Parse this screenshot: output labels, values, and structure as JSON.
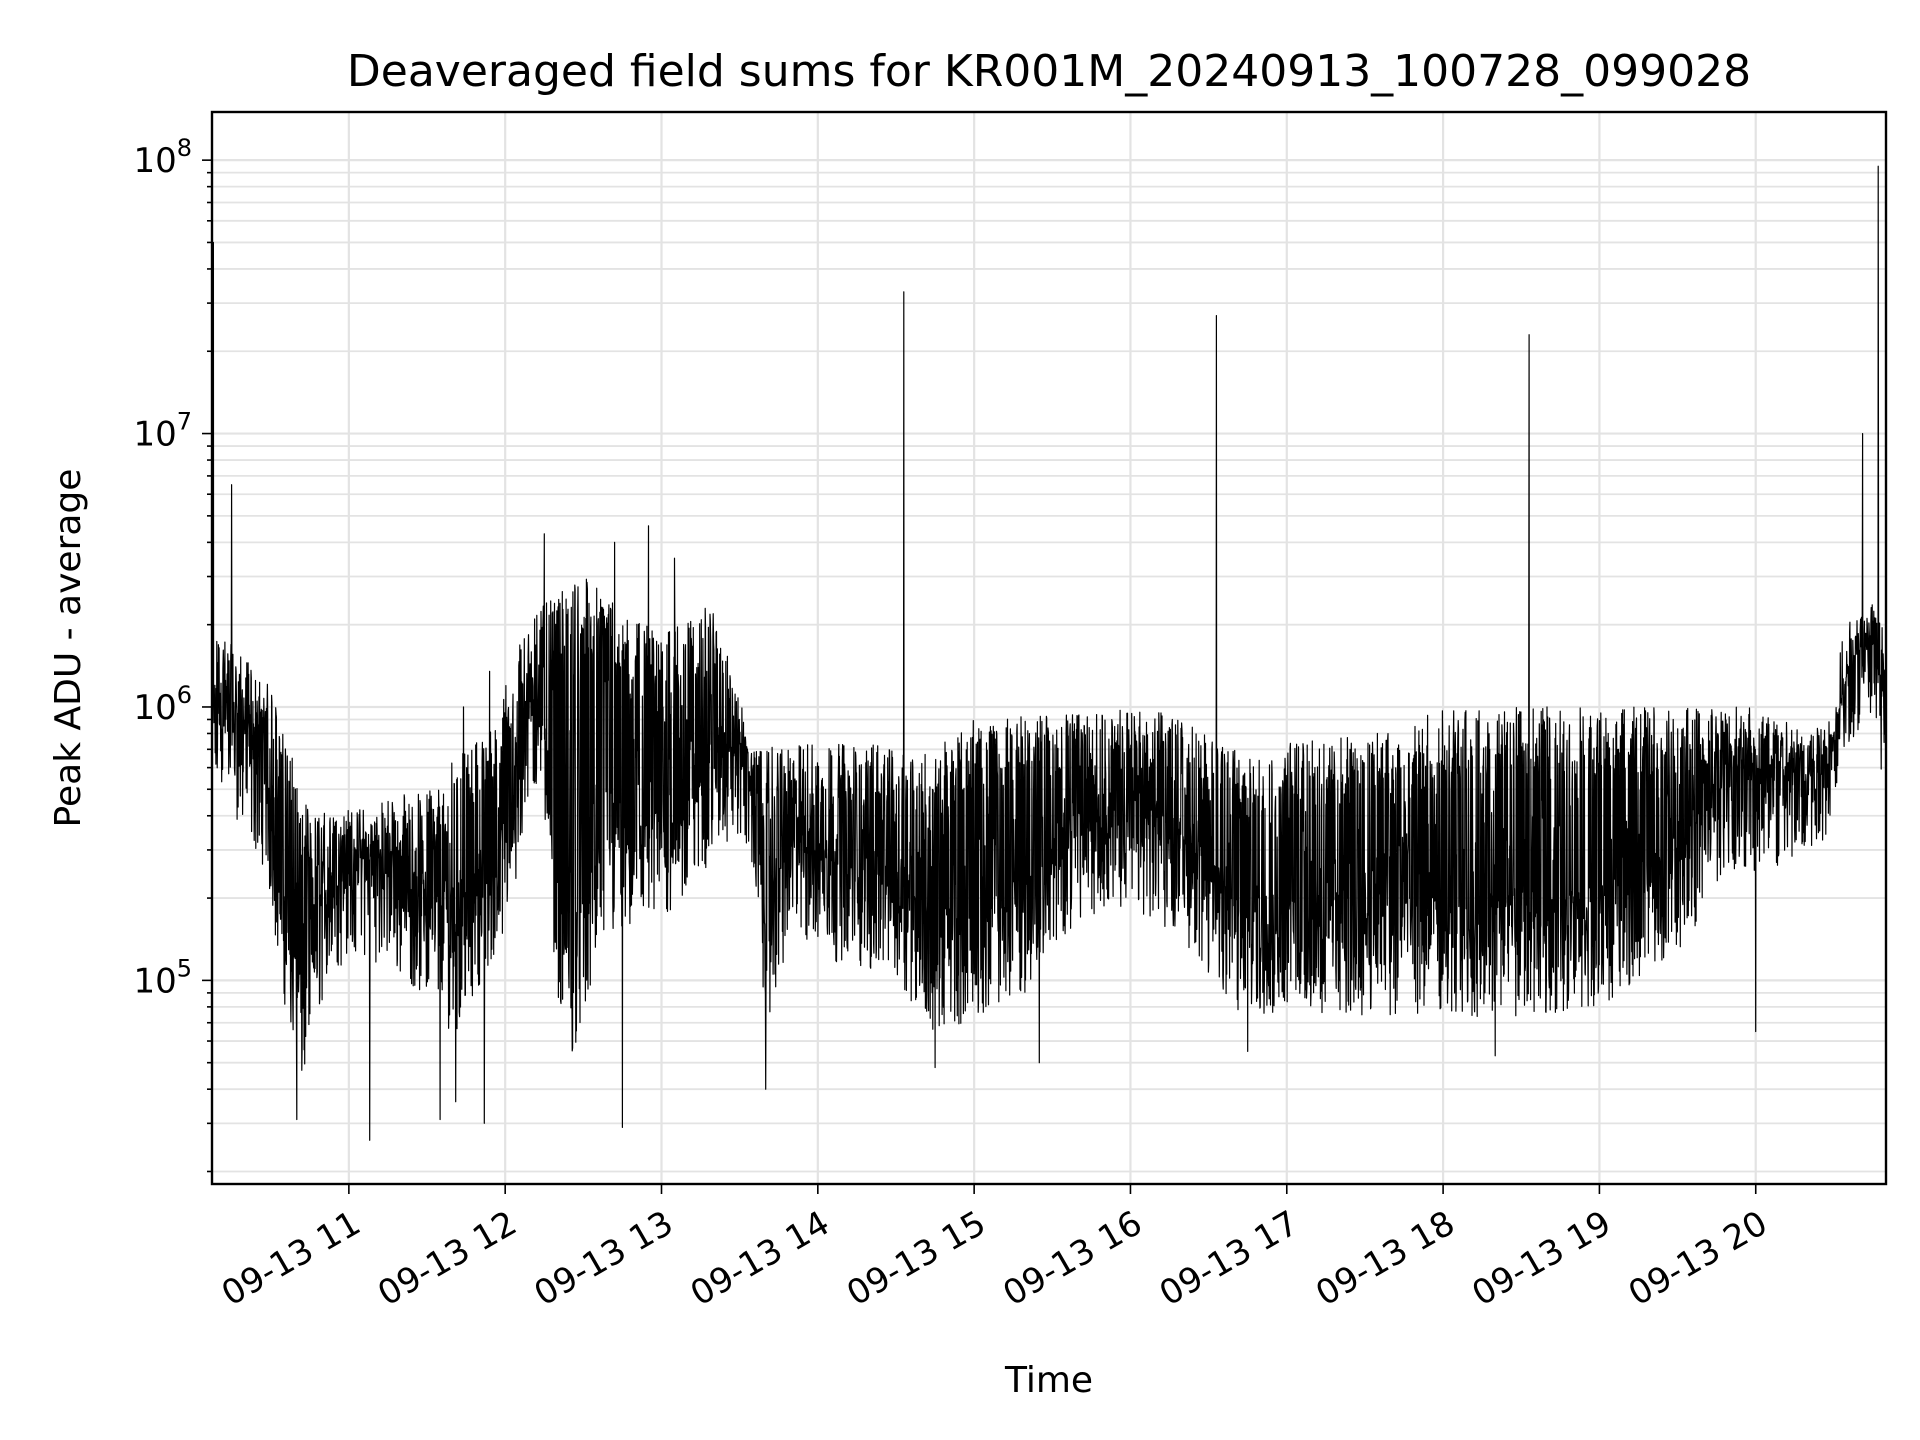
{
  "chart_data": {
    "type": "line",
    "title": "Deaveraged field sums for KR001M_20240913_100728_099028",
    "xlabel": "Time",
    "ylabel": "Peak ADU - average",
    "yscale": "log",
    "ylim": [
      18000,
      150000000
    ],
    "xlim": [
      "2024-09-13 10:07:28",
      "2024-09-13 20:50:00"
    ],
    "x_ticks": [
      "09-13 11",
      "09-13 12",
      "09-13 13",
      "09-13 14",
      "09-13 15",
      "09-13 16",
      "09-13 17",
      "09-13 18",
      "09-13 19",
      "09-13 20"
    ],
    "y_ticks": [
      {
        "base": "10",
        "exp": "5"
      },
      {
        "base": "10",
        "exp": "6"
      },
      {
        "base": "10",
        "exp": "7"
      },
      {
        "base": "10",
        "exp": "8"
      }
    ],
    "grid": true,
    "line_color": "#000000",
    "series": [
      {
        "baseline": [
          [
            "2024-09-13 10:07:28",
            700000
          ],
          [
            "2024-09-13 10:12",
            850000
          ],
          [
            "2024-09-13 10:20",
            600000
          ],
          [
            "2024-09-13 10:28",
            450000
          ],
          [
            "2024-09-13 10:35",
            150000
          ],
          [
            "2024-09-13 10:42",
            70000
          ],
          [
            "2024-09-13 10:50",
            150000
          ],
          [
            "2024-09-13 11:00",
            220000
          ],
          [
            "2024-09-13 11:15",
            200000
          ],
          [
            "2024-09-13 11:30",
            150000
          ],
          [
            "2024-09-13 11:40",
            110000
          ],
          [
            "2024-09-13 11:50",
            170000
          ],
          [
            "2024-09-13 12:00",
            250000
          ],
          [
            "2024-09-13 12:05",
            400000
          ],
          [
            "2024-09-13 12:10",
            900000
          ],
          [
            "2024-09-13 12:15",
            700000
          ],
          [
            "2024-09-13 12:20",
            150000
          ],
          [
            "2024-09-13 12:25",
            90000
          ],
          [
            "2024-09-13 12:40",
            250000
          ],
          [
            "2024-09-13 12:55",
            250000
          ],
          [
            "2024-09-13 13:10",
            350000
          ],
          [
            "2024-09-13 13:20",
            500000
          ],
          [
            "2024-09-13 13:30",
            600000
          ],
          [
            "2024-09-13 13:35",
            450000
          ],
          [
            "2024-09-13 13:40",
            120000
          ],
          [
            "2024-09-13 13:50",
            250000
          ],
          [
            "2024-09-13 14:10",
            200000
          ],
          [
            "2024-09-13 14:30",
            180000
          ],
          [
            "2024-09-13 14:45",
            110000
          ],
          [
            "2024-09-13 15:00",
            130000
          ],
          [
            "2024-09-13 15:20",
            160000
          ],
          [
            "2024-09-13 15:40",
            300000
          ],
          [
            "2024-09-13 16:00",
            330000
          ],
          [
            "2024-09-13 16:20",
            250000
          ],
          [
            "2024-09-13 16:40",
            130000
          ],
          [
            "2024-09-13 17:00",
            130000
          ],
          [
            "2024-09-13 17:30",
            130000
          ],
          [
            "2024-09-13 18:00",
            130000
          ],
          [
            "2024-09-13 18:30",
            130000
          ],
          [
            "2024-09-13 19:00",
            140000
          ],
          [
            "2024-09-13 19:30",
            220000
          ],
          [
            "2024-09-13 19:50",
            450000
          ],
          [
            "2024-09-13 20:10",
            420000
          ],
          [
            "2024-09-13 20:25",
            500000
          ],
          [
            "2024-09-13 20:35",
            1300000
          ],
          [
            "2024-09-13 20:45",
            1600000
          ],
          [
            "2024-09-13 20:50",
            800000
          ]
        ],
        "ceiling": [
          [
            "2024-09-13 10:07:28",
            2000000
          ],
          [
            "2024-09-13 10:30",
            1200000
          ],
          [
            "2024-09-13 10:45",
            400000
          ],
          [
            "2024-09-13 11:30",
            500000
          ],
          [
            "2024-09-13 11:55",
            900000
          ],
          [
            "2024-09-13 12:10",
            2200000
          ],
          [
            "2024-09-13 12:30",
            3000000
          ],
          [
            "2024-09-13 13:00",
            1800000
          ],
          [
            "2024-09-13 13:20",
            2500000
          ],
          [
            "2024-09-13 13:35",
            700000
          ],
          [
            "2024-09-13 14:00",
            750000
          ],
          [
            "2024-09-13 14:45",
            700000
          ],
          [
            "2024-09-13 15:00",
            900000
          ],
          [
            "2024-09-13 16:10",
            1000000
          ],
          [
            "2024-09-13 16:40",
            700000
          ],
          [
            "2024-09-13 17:30",
            800000
          ],
          [
            "2024-09-13 18:00",
            1000000
          ],
          [
            "2024-09-13 19:00",
            1000000
          ],
          [
            "2024-09-13 20:00",
            1000000
          ],
          [
            "2024-09-13 20:30",
            800000
          ],
          [
            "2024-09-13 20:40",
            2200000
          ],
          [
            "2024-09-13 20:50",
            2000000
          ]
        ],
        "spikes": [
          [
            "2024-09-13 10:08",
            50000000
          ],
          [
            "2024-09-13 10:15",
            6500000
          ],
          [
            "2024-09-13 11:44",
            1000000
          ],
          [
            "2024-09-13 11:54",
            1350000
          ],
          [
            "2024-09-13 12:15",
            4300000
          ],
          [
            "2024-09-13 12:42",
            4000000
          ],
          [
            "2024-09-13 12:55",
            4600000
          ],
          [
            "2024-09-13 13:05",
            3500000
          ],
          [
            "2024-09-13 14:33",
            33000000
          ],
          [
            "2024-09-13 16:33",
            27000000
          ],
          [
            "2024-09-13 18:33",
            23000000
          ],
          [
            "2024-09-13 20:41",
            10000000
          ],
          [
            "2024-09-13 20:47",
            95000000
          ]
        ],
        "dips": [
          [
            "2024-09-13 10:40",
            31000
          ],
          [
            "2024-09-13 11:08",
            26000
          ],
          [
            "2024-09-13 11:35",
            31000
          ],
          [
            "2024-09-13 11:41",
            36000
          ],
          [
            "2024-09-13 11:52",
            30000
          ],
          [
            "2024-09-13 12:45",
            29000
          ],
          [
            "2024-09-13 13:40",
            40000
          ],
          [
            "2024-09-13 14:45",
            48000
          ],
          [
            "2024-09-13 15:25",
            50000
          ],
          [
            "2024-09-13 16:45",
            55000
          ],
          [
            "2024-09-13 18:20",
            53000
          ],
          [
            "2024-09-13 20:00",
            65000
          ]
        ]
      }
    ]
  }
}
